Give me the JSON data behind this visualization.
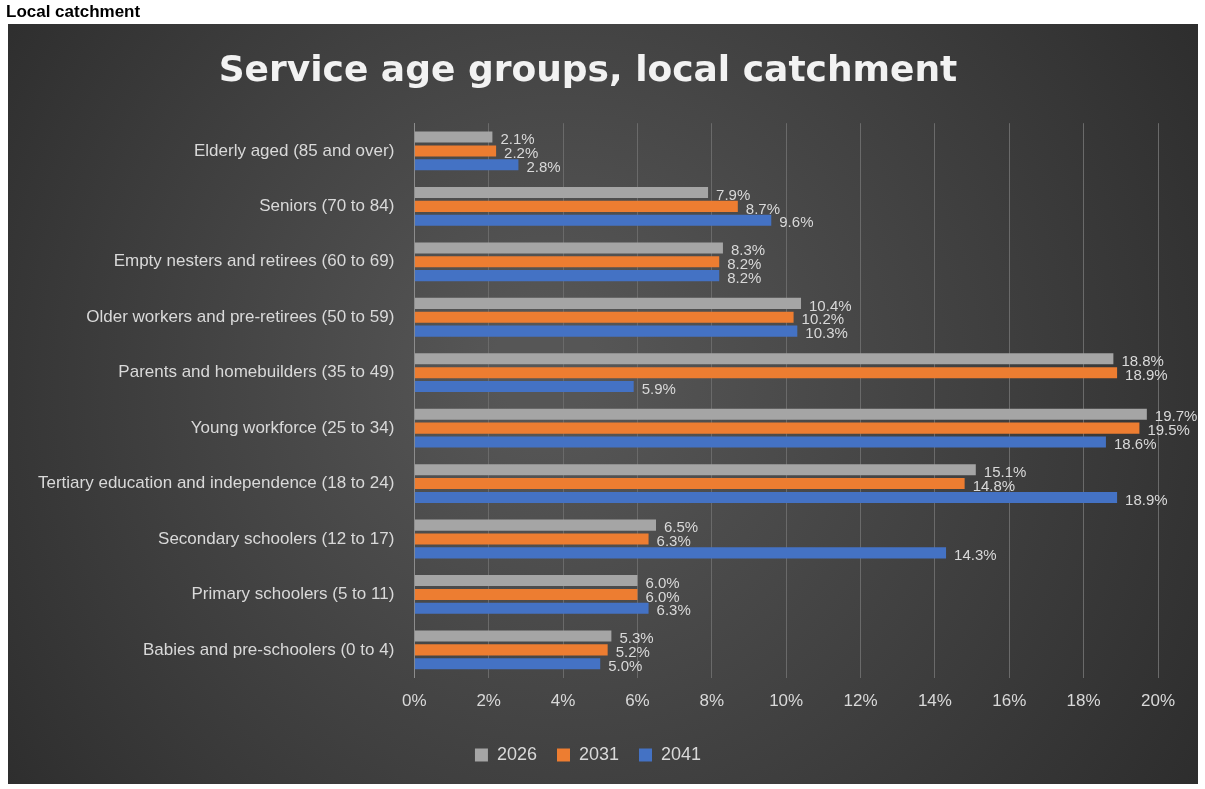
{
  "chart_data": {
    "type": "bar",
    "orientation": "horizontal",
    "title": "Service age groups, local catchment",
    "annotations": [
      "Local catchment"
    ],
    "categories": [
      "Elderly aged (85 and over)",
      "Seniors (70 to 84)",
      "Empty nesters and retirees (60 to 69)",
      "Older workers and pre-retirees (50 to 59)",
      "Parents and homebuilders (35 to 49)",
      "Young workforce (25 to 34)",
      "Tertiary education and independence (18 to 24)",
      "Secondary schoolers (12 to 17)",
      "Primary schoolers (5 to 11)",
      "Babies and pre-schoolers (0 to 4)"
    ],
    "series": [
      {
        "name": "2026",
        "color": "#a5a5a5",
        "values": [
          2.1,
          7.9,
          8.3,
          10.4,
          18.8,
          19.7,
          15.1,
          6.5,
          6.0,
          5.3
        ],
        "value_labels": [
          "2.1%",
          "7.9%",
          "8.3%",
          "10.4%",
          "18.8%",
          "19.7%",
          "15.1%",
          "6.5%",
          "6.0%",
          "5.3%"
        ]
      },
      {
        "name": "2031",
        "color": "#ed7d31",
        "values": [
          2.2,
          8.7,
          8.2,
          10.2,
          18.9,
          19.5,
          14.8,
          6.3,
          6.0,
          5.2
        ],
        "value_labels": [
          "2.2%",
          "8.7%",
          "8.2%",
          "10.2%",
          "18.9%",
          "19.5%",
          "14.8%",
          "6.3%",
          "6.0%",
          "5.2%"
        ]
      },
      {
        "name": "2041",
        "color": "#4472c4",
        "values": [
          2.8,
          9.6,
          8.2,
          10.3,
          5.9,
          18.6,
          18.9,
          14.3,
          6.3,
          5.0
        ],
        "value_labels": [
          "2.8%",
          "9.6%",
          "8.2%",
          "10.3%",
          "5.9%",
          "18.6%",
          "18.9%",
          "14.3%",
          "6.3%",
          "5.0%"
        ]
      }
    ],
    "xlim": [
      0,
      20
    ],
    "xticks": [
      {
        "value": 0,
        "label": "0%"
      },
      {
        "value": 2,
        "label": "2%"
      },
      {
        "value": 4,
        "label": "4%"
      },
      {
        "value": 6,
        "label": "6%"
      },
      {
        "value": 8,
        "label": "8%"
      },
      {
        "value": 10,
        "label": "10%"
      },
      {
        "value": 12,
        "label": "12%"
      },
      {
        "value": 14,
        "label": "14%"
      },
      {
        "value": 16,
        "label": "16%"
      },
      {
        "value": 18,
        "label": "18%"
      },
      {
        "value": 20,
        "label": "20%"
      }
    ],
    "grid": "x",
    "legend": "bottom"
  }
}
